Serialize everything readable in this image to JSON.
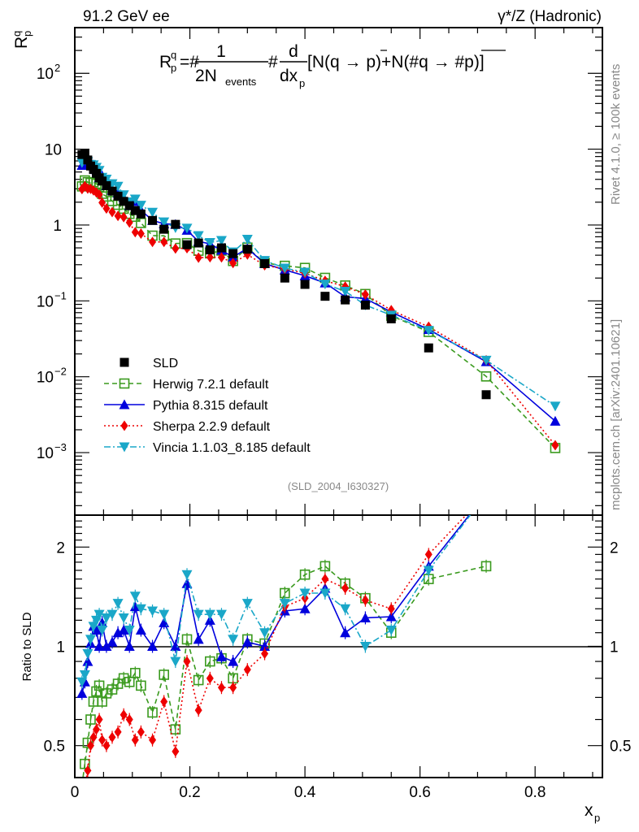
{
  "chart_data": {
    "type": "scatter",
    "header_left": "91.2 GeV ee",
    "header_right": "γ*/Z (Hadronic)",
    "formula": "R_p^q=#1/(2N_events)#d/dx_p[N(q → p)+N(#q̄ → #p̄)]",
    "formula_parts": {
      "lhs_main": "R",
      "lhs_sup": "q",
      "lhs_sub": "p",
      "eq": "=#",
      "frac1_num": "1",
      "frac1_den_main": "2N",
      "frac1_den_sub": "events",
      "hash": "#",
      "frac2_num": "d",
      "frac2_den_main": "dx",
      "frac2_den_sub": "p",
      "rest": "[N(q → p)+N(#q → #p)]"
    },
    "ylabel": "R_p^q",
    "ylabel_parts": {
      "main": "R",
      "sup": "q",
      "sub": "p"
    },
    "xlabel": "x_p",
    "xlabel_parts": {
      "main": "x",
      "sub": "p"
    },
    "ratio_ylabel": "Ratio to SLD",
    "side_text_top": "Rivet 4.1.0, ≥ 100k events",
    "side_text_bottom": "mcplots.cern.ch [arXiv:2401.10621]",
    "analysis_id": "(SLD_2004_I630327)",
    "xlim": [
      0,
      0.917
    ],
    "ylim": [
      0.00015,
      400
    ],
    "yscale": "log",
    "ratio_ylim": [
      0.4,
      2.5
    ],
    "ratio_yscale": "log",
    "legend_position": "bottom-left",
    "x_ticks": [
      {
        "v": 0,
        "label": "0"
      },
      {
        "v": 0.2,
        "label": "0.2"
      },
      {
        "v": 0.4,
        "label": "0.4"
      },
      {
        "v": 0.6,
        "label": "0.6"
      },
      {
        "v": 0.8,
        "label": "0.8"
      }
    ],
    "y_ticks": [
      {
        "exp": 2,
        "base": "10",
        "sup": "2"
      },
      {
        "exp": 1,
        "base": "10",
        "sup": ""
      },
      {
        "exp": 0,
        "base": "1",
        "sup": ""
      },
      {
        "exp": -1,
        "base": "10",
        "sup": "−1"
      },
      {
        "exp": -2,
        "base": "10",
        "sup": "−2"
      },
      {
        "exp": -3,
        "base": "10",
        "sup": "−3"
      }
    ],
    "ratio_ticks": [
      {
        "v": 2,
        "label": "2"
      },
      {
        "v": 1,
        "label": "1"
      },
      {
        "v": 0.5,
        "label": "0.5"
      }
    ],
    "x": [
      0.0125,
      0.0175,
      0.0225,
      0.0275,
      0.0325,
      0.0375,
      0.0425,
      0.0475,
      0.055,
      0.065,
      0.075,
      0.085,
      0.095,
      0.105,
      0.115,
      0.135,
      0.155,
      0.175,
      0.195,
      0.215,
      0.235,
      0.255,
      0.275,
      0.3,
      0.33,
      0.365,
      0.4,
      0.435,
      0.47,
      0.505,
      0.55,
      0.615,
      0.715,
      0.835
    ],
    "data": {
      "name": "SLD",
      "color": "#000000",
      "values": [
        8.5,
        8.8,
        7.2,
        6.0,
        5.4,
        4.8,
        4.2,
        3.8,
        3.3,
        2.8,
        2.4,
        2.05,
        1.8,
        1.55,
        1.4,
        1.15,
        0.88,
        1.02,
        0.55,
        0.58,
        0.47,
        0.5,
        0.42,
        0.48,
        0.31,
        0.2,
        0.165,
        0.115,
        0.103,
        0.088,
        0.058,
        0.024,
        0.0058,
        null
      ]
    },
    "series": [
      {
        "name": "Herwig 7.2.1 default",
        "color": "#3a9a1e",
        "marker": "open-square",
        "line": "dashed",
        "ratio": [
          0.38,
          0.44,
          0.51,
          0.6,
          0.68,
          0.73,
          0.76,
          0.68,
          0.72,
          0.74,
          0.77,
          0.8,
          0.78,
          0.83,
          0.76,
          0.63,
          0.82,
          0.56,
          1.05,
          0.79,
          0.9,
          0.92,
          0.8,
          1.05,
          1.02,
          1.45,
          1.65,
          1.75,
          1.55,
          1.4,
          1.1,
          1.6,
          1.75,
          null
        ]
      },
      {
        "name": "Pythia 8.315 default",
        "color": "#0000dd",
        "marker": "filled-triangle-up",
        "line": "solid",
        "ratio": [
          0.72,
          0.78,
          0.9,
          1.02,
          1.15,
          1.12,
          1.0,
          1.18,
          1.0,
          1.03,
          1.1,
          1.12,
          1.0,
          1.32,
          1.12,
          1.0,
          1.18,
          1.0,
          1.55,
          1.05,
          1.2,
          0.93,
          0.9,
          1.03,
          1.0,
          1.28,
          1.3,
          1.5,
          1.1,
          1.22,
          1.23,
          1.75,
          null,
          null
        ]
      },
      {
        "name": "Sherpa 2.2.9 default",
        "color": "#ee0000",
        "marker": "filled-diamond",
        "line": "dotted",
        "ratio": [
          0.35,
          0.37,
          0.42,
          0.5,
          0.53,
          0.56,
          0.6,
          0.52,
          0.5,
          0.53,
          0.55,
          0.62,
          0.6,
          0.52,
          0.55,
          0.52,
          0.68,
          0.48,
          0.9,
          0.64,
          0.8,
          0.75,
          0.75,
          0.85,
          0.95,
          1.32,
          1.4,
          1.6,
          1.5,
          1.38,
          1.3,
          1.9,
          null,
          null
        ]
      },
      {
        "name": "Vincia 1.1.03_8.185 default",
        "color": "#1aa7c8",
        "marker": "filled-triangle-down",
        "line": "dashdot",
        "ratio": [
          0.78,
          0.82,
          0.95,
          1.05,
          1.15,
          1.2,
          1.25,
          1.12,
          1.22,
          1.25,
          1.35,
          1.22,
          1.12,
          1.42,
          1.3,
          1.28,
          1.25,
          0.9,
          1.65,
          1.25,
          1.25,
          1.25,
          1.05,
          1.35,
          1.1,
          1.35,
          1.45,
          1.45,
          1.3,
          1.0,
          1.12,
          1.7,
          null,
          null
        ]
      }
    ],
    "mc_high_x_values": {
      "Herwig 7.2.1 default": {
        "0.615": 0.039,
        "0.715": 0.0101,
        "0.835": 0.00115
      },
      "Pythia 8.315 default": {
        "0.715": 0.0158,
        "0.835": 0.0026
      },
      "Sherpa 2.2.9 default": {
        "0.715": 0.0165,
        "0.835": 0.00125
      },
      "Vincia 1.1.03_8.185 default": {
        "0.715": 0.0165,
        "0.835": 0.0041
      }
    }
  }
}
